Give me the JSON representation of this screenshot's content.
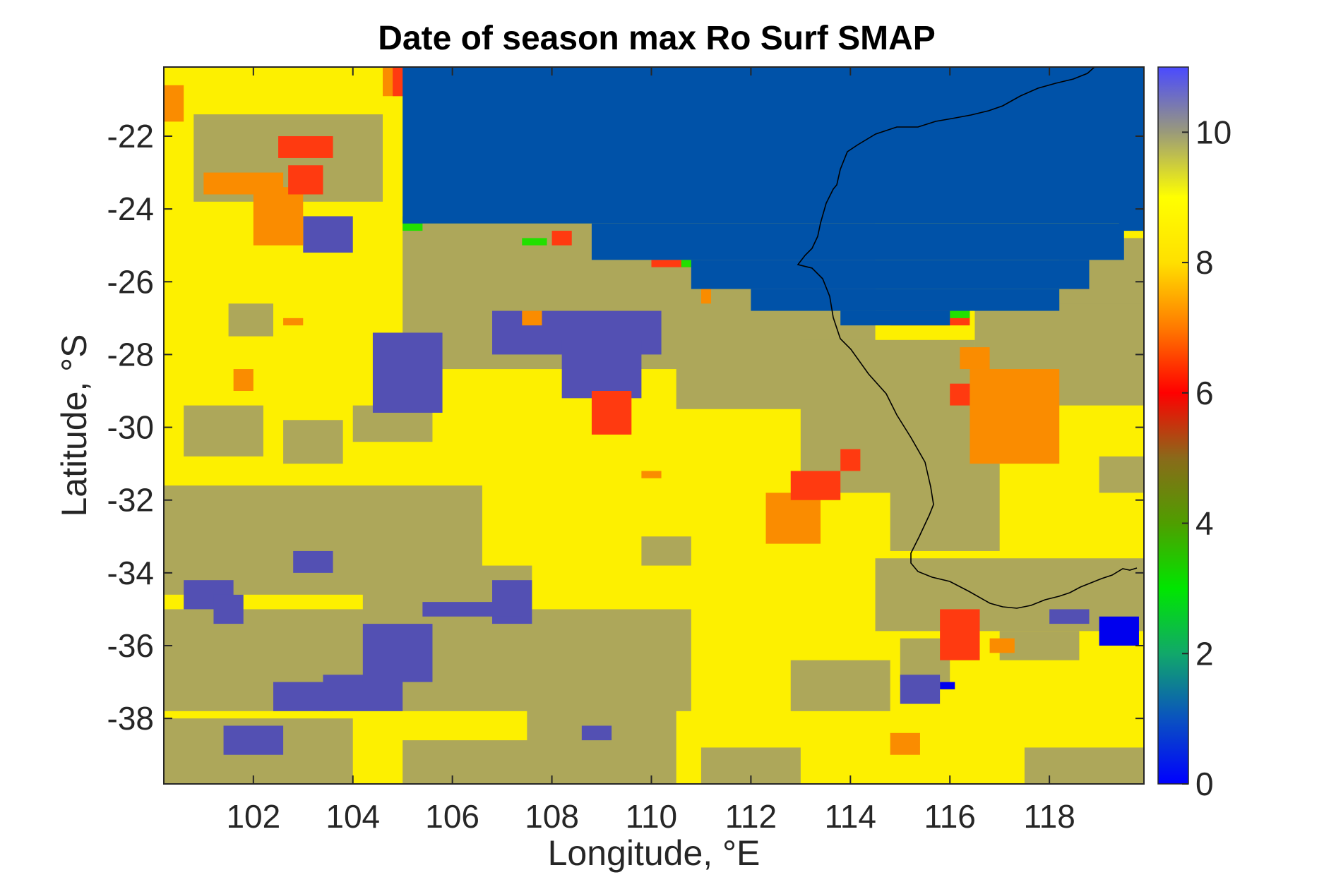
{
  "chart_data": {
    "type": "heatmap",
    "title": "Date of season max Ro Surf SMAP",
    "xlabel": "Longitude, °E",
    "ylabel": "Latitude, °S",
    "xlim": [
      100.2,
      119.9
    ],
    "ylim": [
      -39.8,
      -20.1
    ],
    "x_ticks": [
      102,
      104,
      106,
      108,
      110,
      112,
      114,
      116,
      118
    ],
    "x_tick_labels": [
      "102",
      "104",
      "106",
      "108",
      "110",
      "112",
      "114",
      "116",
      "118"
    ],
    "y_ticks": [
      -22,
      -24,
      -26,
      -28,
      -30,
      -32,
      -34,
      -36,
      -38
    ],
    "y_tick_labels": [
      "-22",
      "-24",
      "-26",
      "-28",
      "-30",
      "-32",
      "-34",
      "-36",
      "-38"
    ],
    "colorbar": {
      "range": [
        0,
        11
      ],
      "ticks": [
        0,
        2,
        4,
        6,
        8,
        10
      ],
      "tick_labels": [
        "0",
        "2",
        "4",
        "6",
        "8",
        "10"
      ],
      "colors": [
        "#0000ff",
        "#0a52c0",
        "#11a86a",
        "#00e600",
        "#4f9e00",
        "#8a6a1a",
        "#ff0000",
        "#ff7a00",
        "#ffe000",
        "#ffff00",
        "#9a9a7a",
        "#4a4aff"
      ]
    },
    "regions": [
      {
        "value": 8,
        "color": "#fdf000",
        "label": "background",
        "cells": [
          [
            100.2,
            -39.8,
            119.9,
            -20.1
          ]
        ]
      },
      {
        "value": 9,
        "color": "#ada75a",
        "cells": [
          [
            100.8,
            -23.8,
            104.6,
            -21.4
          ],
          [
            101.5,
            -27.5,
            102.4,
            -26.6
          ],
          [
            100.2,
            -34.6,
            106.6,
            -31.6
          ],
          [
            100.2,
            -37.8,
            110.8,
            -35.0
          ],
          [
            104.2,
            -36.0,
            107.6,
            -33.8
          ],
          [
            105.0,
            -28.4,
            114.5,
            -24.4
          ],
          [
            110.5,
            -29.5,
            113.8,
            -27.0
          ],
          [
            113.0,
            -31.8,
            116.5,
            -27.6
          ],
          [
            114.8,
            -33.4,
            117.0,
            -30.6
          ],
          [
            114.5,
            -35.6,
            119.9,
            -33.6
          ],
          [
            116.5,
            -29.4,
            119.9,
            -26.5
          ],
          [
            118.2,
            -26.6,
            119.9,
            -24.8
          ],
          [
            100.2,
            -39.8,
            104.0,
            -38.0
          ],
          [
            105.0,
            -39.8,
            109.0,
            -38.6
          ],
          [
            107.5,
            -39.8,
            110.5,
            -37.6
          ],
          [
            111.0,
            -39.8,
            113.0,
            -38.8
          ],
          [
            117.5,
            -39.8,
            119.9,
            -38.8
          ],
          [
            100.6,
            -30.8,
            102.2,
            -29.4
          ],
          [
            102.6,
            -31.0,
            103.8,
            -29.8
          ],
          [
            112.8,
            -37.8,
            114.8,
            -36.4
          ],
          [
            115.0,
            -37.0,
            116.0,
            -35.8
          ],
          [
            117.0,
            -36.4,
            118.6,
            -35.6
          ],
          [
            119.0,
            -31.8,
            119.9,
            -30.8
          ],
          [
            104.0,
            -30.4,
            105.6,
            -29.4
          ],
          [
            109.8,
            -33.8,
            110.8,
            -33.0
          ]
        ]
      },
      {
        "value": 10,
        "color": "#5350b3",
        "cells": [
          [
            104.4,
            -29.6,
            105.8,
            -27.4
          ],
          [
            106.8,
            -28.0,
            110.2,
            -26.8
          ],
          [
            108.2,
            -29.2,
            109.8,
            -27.6
          ],
          [
            103.0,
            -25.2,
            104.0,
            -24.2
          ],
          [
            100.6,
            -35.0,
            101.6,
            -34.2
          ],
          [
            101.2,
            -35.4,
            101.8,
            -34.6
          ],
          [
            102.8,
            -34.0,
            103.6,
            -33.4
          ],
          [
            103.4,
            -37.8,
            105.0,
            -36.8
          ],
          [
            104.2,
            -37.0,
            105.6,
            -35.4
          ],
          [
            102.4,
            -37.8,
            103.6,
            -37.0
          ],
          [
            101.4,
            -39.0,
            102.6,
            -38.2
          ],
          [
            106.8,
            -35.4,
            107.6,
            -34.2
          ],
          [
            105.4,
            -35.2,
            107.4,
            -34.8
          ],
          [
            115.0,
            -37.6,
            115.8,
            -36.8
          ],
          [
            118.0,
            -35.4,
            118.8,
            -35.0
          ],
          [
            108.6,
            -38.6,
            109.2,
            -38.2
          ]
        ]
      },
      {
        "value": 0,
        "color": "#0000ee",
        "cells": [
          [
            119.0,
            -36.0,
            119.8,
            -35.2
          ],
          [
            115.8,
            -37.2,
            116.1,
            -37.0
          ]
        ]
      },
      {
        "value": 7,
        "color": "#fa8c00",
        "cells": [
          [
            100.2,
            -21.6,
            100.6,
            -20.6
          ],
          [
            101.0,
            -23.6,
            102.6,
            -23.0
          ],
          [
            102.0,
            -25.0,
            103.0,
            -23.4
          ],
          [
            104.6,
            -20.9,
            105.4,
            -20.1
          ],
          [
            107.4,
            -27.2,
            107.8,
            -26.8
          ],
          [
            112.3,
            -33.2,
            113.4,
            -31.8
          ],
          [
            116.4,
            -31.0,
            118.2,
            -28.4
          ],
          [
            116.2,
            -28.4,
            116.8,
            -27.8
          ],
          [
            114.8,
            -39.0,
            115.4,
            -38.4
          ],
          [
            116.8,
            -36.2,
            117.3,
            -35.8
          ],
          [
            101.6,
            -29.0,
            102.0,
            -28.4
          ],
          [
            102.6,
            -27.2,
            103.0,
            -27.0
          ],
          [
            111.0,
            -26.6,
            111.2,
            -26.0
          ],
          [
            109.8,
            -31.4,
            110.2,
            -31.2
          ]
        ]
      },
      {
        "value": 6,
        "color": "#ff3a10",
        "cells": [
          [
            102.5,
            -22.6,
            103.6,
            -22.0
          ],
          [
            102.7,
            -23.6,
            103.4,
            -22.8
          ],
          [
            104.8,
            -20.9,
            105.4,
            -20.1
          ],
          [
            108.8,
            -30.2,
            109.6,
            -29.0
          ],
          [
            112.8,
            -32.0,
            113.8,
            -31.2
          ],
          [
            113.8,
            -31.2,
            114.2,
            -30.6
          ],
          [
            115.8,
            -36.4,
            116.6,
            -35.0
          ],
          [
            116.0,
            -29.4,
            116.4,
            -28.8
          ],
          [
            108.0,
            -25.0,
            108.4,
            -24.6
          ],
          [
            110.0,
            -25.6,
            110.8,
            -25.4
          ],
          [
            114.8,
            -27.2,
            116.4,
            -26.8
          ],
          [
            118.4,
            -26.2,
            118.8,
            -25.6
          ],
          [
            119.6,
            -24.6,
            119.9,
            -24.0
          ]
        ]
      },
      {
        "value": 2,
        "color": "#22e000",
        "cells": [
          [
            107.4,
            -25.0,
            107.9,
            -24.8
          ],
          [
            105.0,
            -24.6,
            105.4,
            -24.2
          ],
          [
            110.6,
            -25.6,
            111.0,
            -25.4
          ],
          [
            116.0,
            -27.0,
            116.4,
            -26.8
          ],
          [
            117.0,
            -26.8,
            117.6,
            -26.6
          ]
        ]
      },
      {
        "value": 1,
        "color": "#0052a8",
        "label": "ocean",
        "cells": [
          [
            105.0,
            -24.4,
            119.9,
            -20.1
          ],
          [
            108.8,
            -25.4,
            119.5,
            -24.4
          ],
          [
            110.8,
            -26.2,
            118.8,
            -25.4
          ],
          [
            112.0,
            -26.8,
            118.2,
            -26.2
          ],
          [
            113.8,
            -27.2,
            116.0,
            -26.8
          ],
          [
            119.4,
            -24.6,
            119.9,
            -24.0
          ]
        ]
      }
    ]
  }
}
